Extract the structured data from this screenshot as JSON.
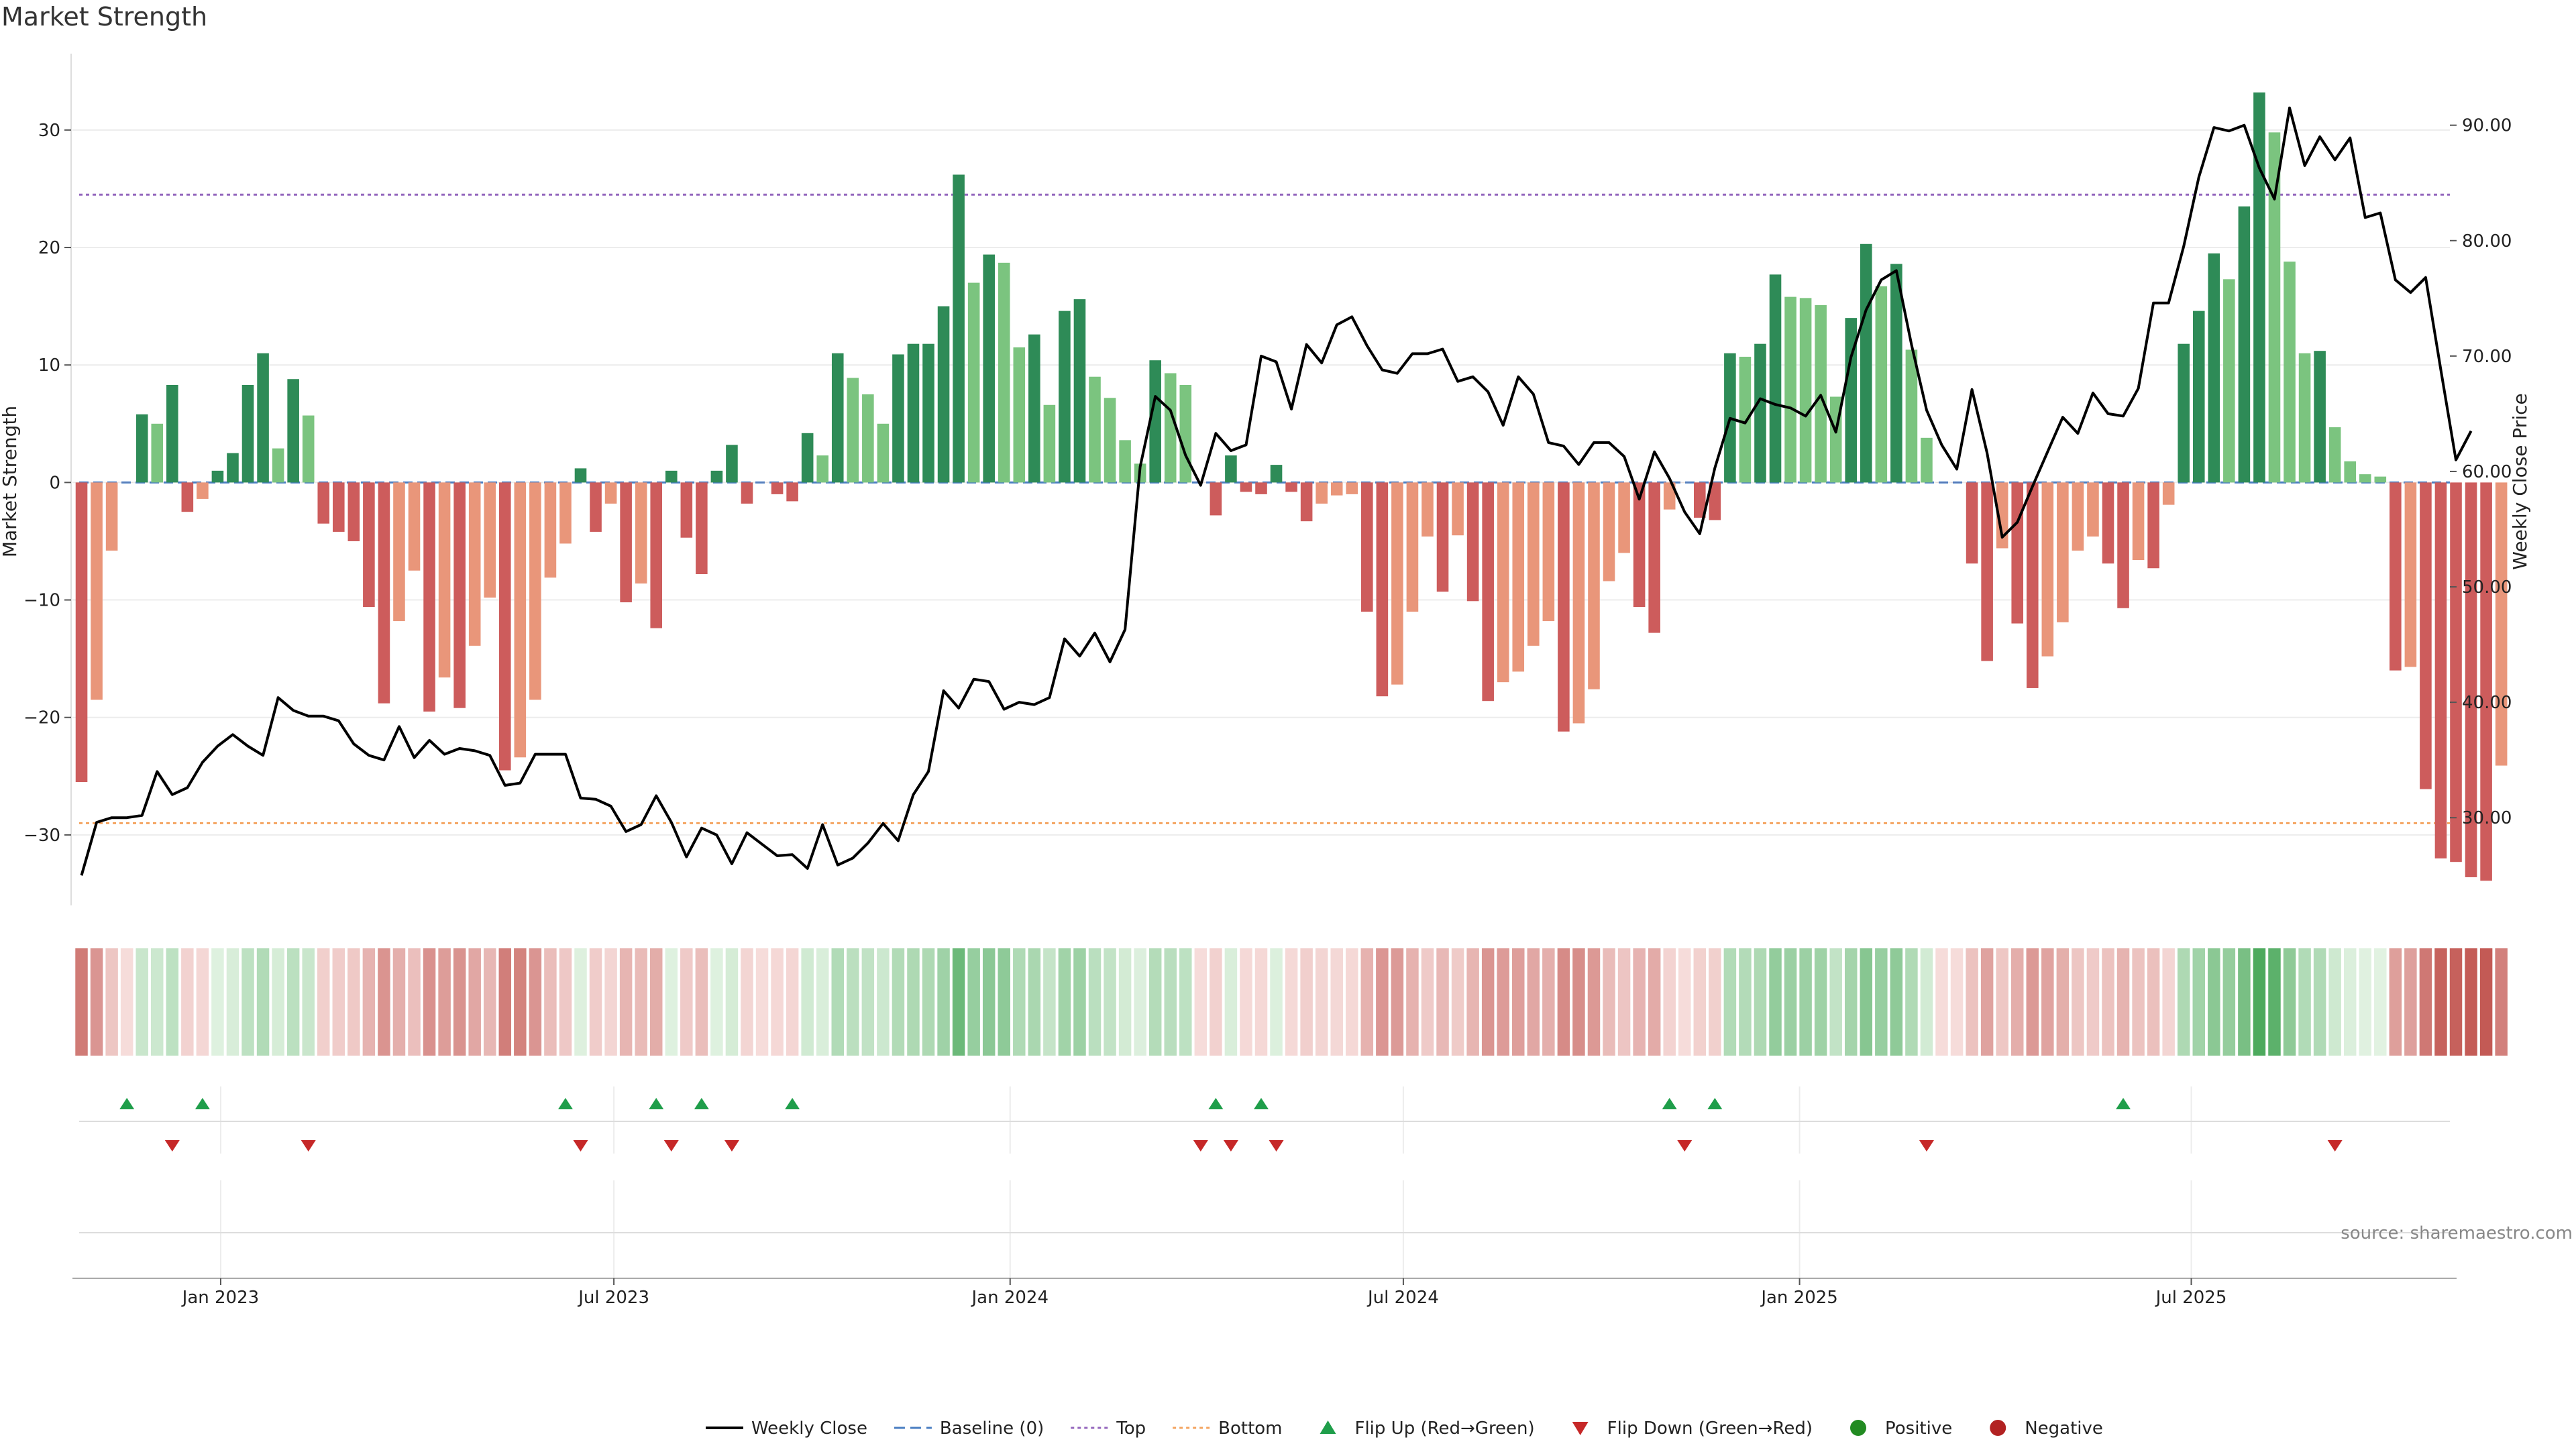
{
  "title": "Market Strength",
  "source": "source: sharemaestro.com",
  "colors": {
    "pos_strong": "#2e8b57",
    "pos_light": "#7bc47f",
    "neg_strong": "#cd5c5c",
    "neg_light": "#e9967a",
    "line": "#000000",
    "baseline": "#4a7ec2",
    "top": "#9467bd",
    "bottom": "#f4a460",
    "flip_up": "#1f9e4a",
    "flip_down": "#c62828",
    "positive": "#228b22",
    "negative": "#b22222"
  },
  "legend": [
    {
      "key": "line",
      "label": "Weekly Close"
    },
    {
      "key": "baseline",
      "label": "Baseline (0)"
    },
    {
      "key": "top",
      "label": "Top"
    },
    {
      "key": "bottom",
      "label": "Bottom"
    },
    {
      "key": "flip_up",
      "label": "Flip Up (Red→Green)"
    },
    {
      "key": "flip_down",
      "label": "Flip Down (Green→Red)"
    },
    {
      "key": "positive",
      "label": "Positive"
    },
    {
      "key": "negative",
      "label": "Negative"
    }
  ],
  "chart_data": {
    "type": "bar",
    "title": "Market Strength",
    "ylabel": "Market Strength",
    "y2label": "Weekly Close Price",
    "ylim": [
      -36,
      36.5
    ],
    "y2lim": [
      22.4,
      96.2
    ],
    "yticks": [
      -30,
      -20,
      -10,
      0,
      10,
      20,
      30
    ],
    "y2ticks": [
      30.0,
      40.0,
      50.0,
      60.0,
      70.0,
      80.0,
      90.0
    ],
    "y2tick_labels": [
      "30.00",
      "40.00",
      "50.00",
      "60.00",
      "70.00",
      "80.00",
      "90.00"
    ],
    "xlim": [
      -0.6,
      156.6
    ],
    "xticks": [
      {
        "label": "Jan 2023",
        "x": 9.2
      },
      {
        "label": "Jul 2023",
        "x": 35.2
      },
      {
        "label": "Jan 2024",
        "x": 61.4
      },
      {
        "label": "Jul 2024",
        "x": 87.4
      },
      {
        "label": "Jan 2025",
        "x": 113.6
      },
      {
        "label": "Jul 2025",
        "x": 139.5
      }
    ],
    "top_line": 24.5,
    "bottom_line": -29,
    "baseline": 0,
    "strength": [
      -25.5,
      -18.5,
      -5.8,
      0,
      5.8,
      5,
      8.3,
      -2.5,
      -1.4,
      1,
      2.5,
      8.3,
      11,
      2.9,
      8.8,
      5.7,
      -3.5,
      -4.2,
      -5,
      -10.6,
      -18.8,
      -11.8,
      -7.5,
      -19.5,
      -16.6,
      -19.2,
      -13.9,
      -9.8,
      -24.5,
      -23.4,
      -18.5,
      -8.1,
      -5.2,
      1.2,
      -4.2,
      -1.8,
      -10.2,
      -8.6,
      -12.4,
      1,
      -4.7,
      -7.8,
      1,
      3.2,
      -1.8,
      0,
      -1,
      -1.6,
      4.2,
      2.3,
      11,
      8.9,
      7.5,
      5,
      10.9,
      11.8,
      11.8,
      15,
      26.2,
      17,
      19.4,
      18.7,
      11.5,
      12.6,
      6.6,
      14.6,
      15.6,
      9,
      7.2,
      3.6,
      1.6,
      10.4,
      9.3,
      8.3,
      0,
      -2.8,
      2.3,
      -0.8,
      -1,
      1.5,
      -0.8,
      -3.3,
      -1.8,
      -1.1,
      -1,
      -11,
      -18.2,
      -17.2,
      -11,
      -4.6,
      -9.3,
      -4.5,
      -10.1,
      -18.6,
      -17,
      -16.1,
      -13.9,
      -11.8,
      -21.2,
      -20.5,
      -17.6,
      -8.4,
      -6,
      -10.6,
      -12.8,
      -2.3,
      0,
      -3,
      -3.2,
      11,
      10.7,
      11.8,
      17.7,
      15.8,
      15.7,
      15.1,
      7.3,
      14,
      20.3,
      16.7,
      18.6,
      11.3,
      3.8,
      0,
      0,
      -6.9,
      -15.2,
      -5.6,
      -12,
      -17.5,
      -14.8,
      -11.9,
      -5.8,
      -4.6,
      -6.9,
      -10.7,
      -6.6,
      -7.3,
      -1.9,
      11.8,
      14.6,
      19.5,
      17.3,
      23.5,
      33.2,
      29.8,
      18.8,
      11,
      11.2,
      4.7,
      1.8,
      0.7,
      0.5,
      -16,
      -15.7,
      -26.1,
      -32,
      -32.3,
      -33.6,
      -33.9,
      -24.1
    ],
    "weekly_close": [
      25,
      29.6,
      30,
      30,
      30.2,
      34,
      32,
      32.6,
      34.8,
      36.2,
      37.2,
      36.2,
      35.4,
      40.4,
      39.3,
      38.8,
      38.8,
      38.4,
      36.4,
      35.4,
      35,
      37.9,
      35.2,
      36.7,
      35.5,
      36,
      35.8,
      35.4,
      32.8,
      33,
      35.5,
      35.5,
      35.5,
      31.7,
      31.6,
      31,
      28.8,
      29.4,
      31.9,
      29.6,
      26.6,
      29.1,
      28.5,
      26,
      28.7,
      27.7,
      26.7,
      26.8,
      25.6,
      29.4,
      25.9,
      26.5,
      27.8,
      29.5,
      28,
      32,
      34,
      41,
      39.5,
      42,
      41.8,
      39.4,
      40,
      39.8,
      40.4,
      45.5,
      44,
      46,
      43.5,
      46.3,
      60.4,
      66.5,
      65.3,
      61.4,
      58.8,
      63.3,
      61.8,
      62.3,
      70,
      69.5,
      65.4,
      71,
      69.4,
      72.7,
      73.4,
      70.9,
      68.8,
      68.5,
      70.2,
      70.2,
      70.6,
      67.8,
      68.2,
      66.9,
      64,
      68.2,
      66.7,
      62.5,
      62.2,
      60.6,
      62.5,
      62.5,
      61.3,
      57.6,
      61.7,
      59.4,
      56.5,
      54.6,
      60.3,
      64.6,
      64.2,
      66.3,
      65.8,
      65.5,
      64.8,
      66.6,
      63.4,
      69.9,
      74,
      76.6,
      77.4,
      71,
      65.3,
      62.3,
      60.2,
      67.1,
      61.6,
      54.3,
      55.6,
      58.7,
      61.7,
      64.7,
      63.3,
      66.8,
      65,
      64.8,
      67.2,
      74.6,
      74.6,
      79.5,
      85.5,
      89.8,
      89.5,
      90,
      86.3,
      83.6,
      91.5,
      86.5,
      89,
      87,
      88.9,
      82,
      82.4,
      76.6,
      75.5,
      76.8,
      68.8,
      61,
      63.5
    ],
    "heat_strip": [
      -25.5,
      -18.5,
      -5.8,
      0,
      5.8,
      5,
      8.3,
      -2.5,
      -1.4,
      1,
      2.5,
      8.3,
      11,
      2.9,
      8.8,
      5.7,
      -3.5,
      -4.2,
      -5,
      -10.6,
      -18.8,
      -11.8,
      -7.5,
      -19.5,
      -16.6,
      -19.2,
      -13.9,
      -9.8,
      -24.5,
      -23.4,
      -18.5,
      -8.1,
      -5.2,
      1.2,
      -4.2,
      -1.8,
      -10.2,
      -8.6,
      -12.4,
      1,
      -4.7,
      -7.8,
      1,
      3.2,
      -1.8,
      0,
      -1,
      -1.6,
      4.2,
      2.3,
      11,
      8.9,
      7.5,
      5,
      10.9,
      11.8,
      11.8,
      15,
      26.2,
      17,
      19.4,
      18.7,
      11.5,
      12.6,
      6.6,
      14.6,
      15.6,
      9,
      7.2,
      3.6,
      1.6,
      10.4,
      9.3,
      8.3,
      0,
      -2.8,
      2.3,
      -0.8,
      -1,
      1.5,
      -0.8,
      -3.3,
      -1.8,
      -1.1,
      -1,
      -11,
      -18.2,
      -17.2,
      -11,
      -4.6,
      -9.3,
      -4.5,
      -10.1,
      -18.6,
      -17,
      -16.1,
      -13.9,
      -11.8,
      -21.2,
      -20.5,
      -17.6,
      -8.4,
      -6,
      -10.6,
      -12.8,
      -2.3,
      0,
      -3,
      -3.2,
      11,
      10.7,
      11.8,
      17.7,
      15.8,
      15.7,
      15.1,
      7.3,
      14,
      20.3,
      16.7,
      18.6,
      11.3,
      3.8,
      0,
      0,
      -6.9,
      -15.2,
      -5.6,
      -12,
      -17.5,
      -14.8,
      -11.9,
      -5.8,
      -4.6,
      -6.9,
      -10.7,
      -6.6,
      -7.3,
      -1.9,
      11.8,
      14.6,
      19.5,
      17.3,
      23.5,
      33.2,
      29.8,
      18.8,
      11,
      11.2,
      4.7,
      1.8,
      0.7,
      0.5,
      -16,
      -15.7,
      -26.1,
      -32,
      -32.3,
      -33.6,
      -33.9,
      -24.1
    ],
    "flip_up_x": [
      3,
      8,
      32,
      38,
      41,
      47,
      75,
      78,
      105,
      108,
      135
    ],
    "flip_down_x": [
      6,
      15,
      33,
      39,
      43,
      74,
      76,
      79,
      106,
      122,
      149
    ]
  }
}
